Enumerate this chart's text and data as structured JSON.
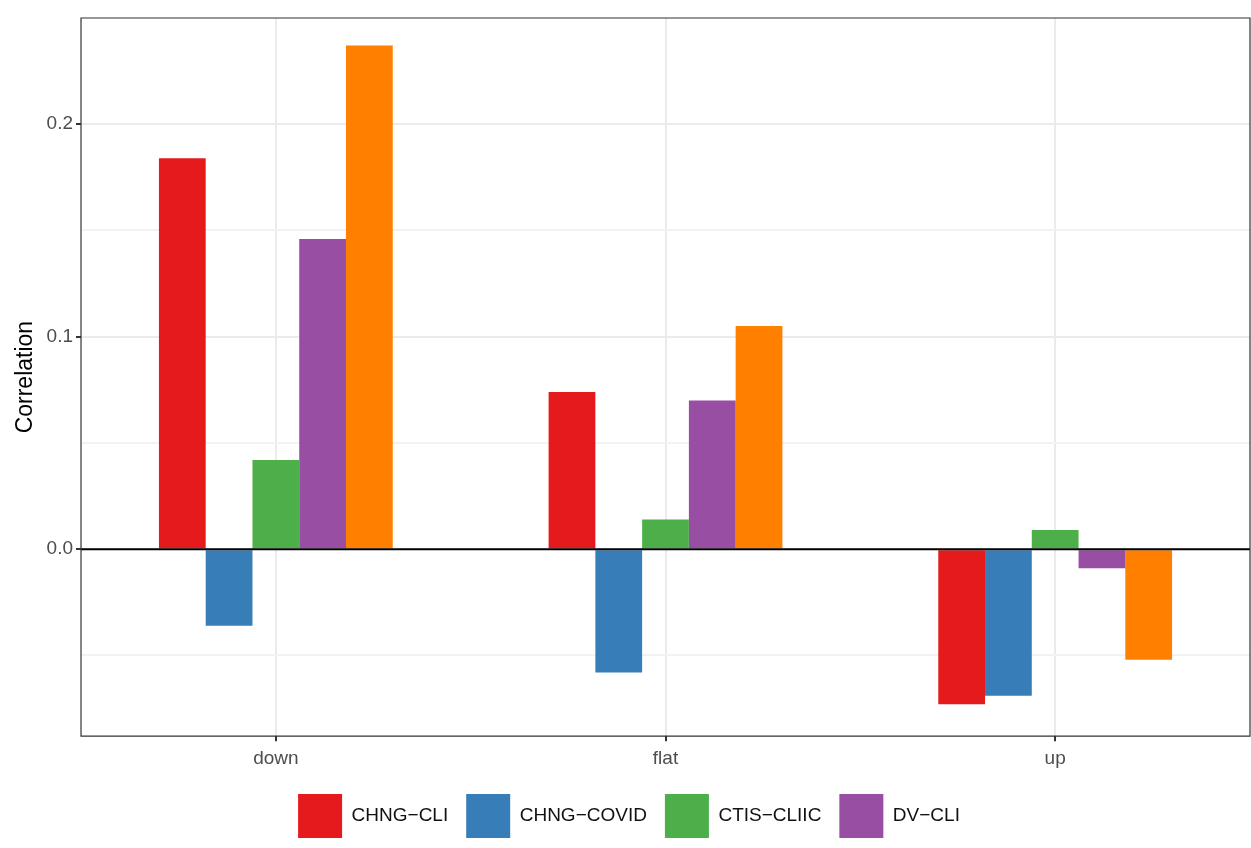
{
  "chart_data": {
    "type": "bar",
    "ylabel": "Correlation",
    "categories": [
      "down",
      "flat",
      "up"
    ],
    "series": [
      {
        "name": "CHNG−CLI",
        "color": "#e41a1c",
        "values": [
          0.184,
          0.074,
          -0.073
        ]
      },
      {
        "name": "CHNG−COVID",
        "color": "#377eb8",
        "values": [
          -0.036,
          -0.058,
          -0.069
        ]
      },
      {
        "name": "CTIS−CLIIC",
        "color": "#4daf4a",
        "values": [
          0.042,
          0.014,
          0.009
        ]
      },
      {
        "name": "DV−CLI",
        "color": "#984ea3",
        "values": [
          0.146,
          0.07,
          -0.009
        ]
      },
      {
        "color": "#ff7f00",
        "values": [
          0.237,
          0.105,
          -0.052
        ]
      }
    ],
    "ylim": [
      -0.088,
      0.25
    ],
    "yticks": [
      {
        "value": -0.05,
        "label": null
      },
      {
        "value": 0,
        "label": "0.0"
      },
      {
        "value": 0.05,
        "label": null
      },
      {
        "value": 0.1,
        "label": "0.1"
      },
      {
        "value": 0.15,
        "label": null
      },
      {
        "value": 0.2,
        "label": "0.2"
      }
    ],
    "ref_lines": [
      {
        "axis": "y",
        "value": 0,
        "color": "#000000"
      }
    ],
    "grid": true,
    "legend": "bottom"
  }
}
